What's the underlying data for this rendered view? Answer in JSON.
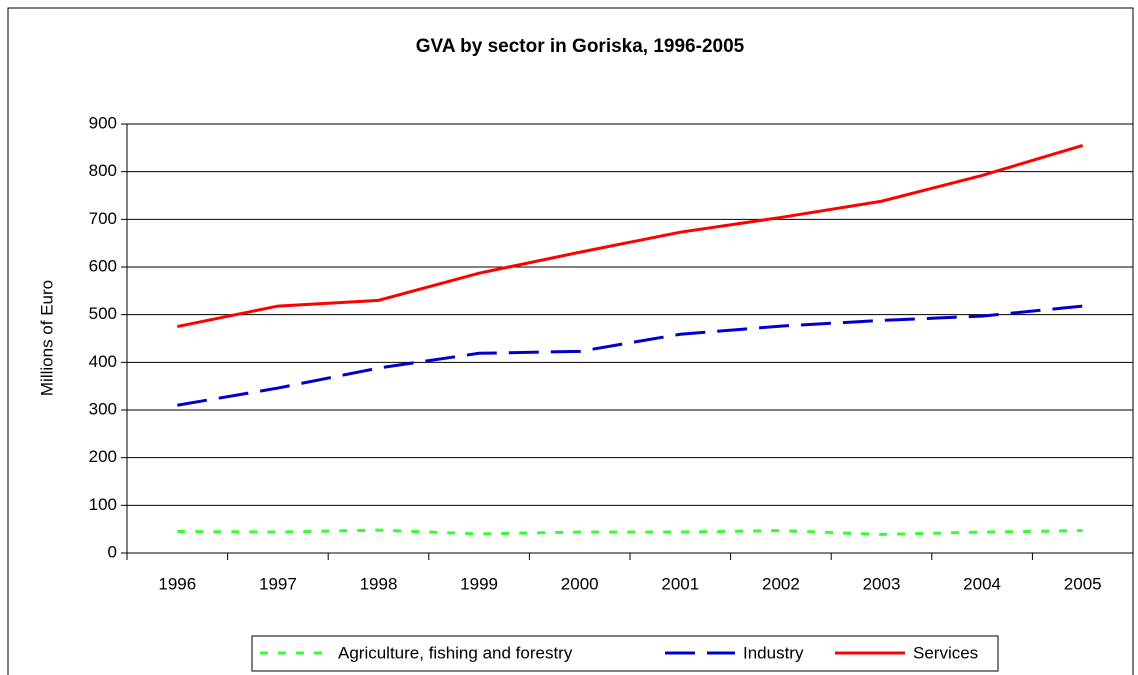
{
  "chart_data": {
    "type": "line",
    "title": "GVA by sector in Goriska, 1996-2005",
    "y_label": "Millions of Euro",
    "categories": [
      "1996",
      "1997",
      "1998",
      "1999",
      "2000",
      "2001",
      "2002",
      "2003",
      "2004",
      "2005"
    ],
    "series": [
      {
        "name": "Agriculture, fishing and forestry",
        "color": "#33ff33",
        "dash": "8 10",
        "values": [
          45,
          44,
          48,
          40,
          44,
          44,
          47,
          39,
          44,
          47
        ]
      },
      {
        "name": "Industry",
        "color": "#0000cc",
        "dash": "30 12",
        "values": [
          310,
          346,
          388,
          419,
          423,
          459,
          476,
          488,
          497,
          518
        ]
      },
      {
        "name": "Services",
        "color": "#ff0000",
        "dash": "none",
        "values": [
          475,
          518,
          530,
          587,
          631,
          673,
          704,
          738,
          792,
          855
        ]
      }
    ],
    "ylim": [
      0,
      900
    ],
    "yticks": [
      0,
      100,
      200,
      300,
      400,
      500,
      600,
      700,
      800,
      900
    ],
    "grid": true,
    "legend": "bottom"
  }
}
